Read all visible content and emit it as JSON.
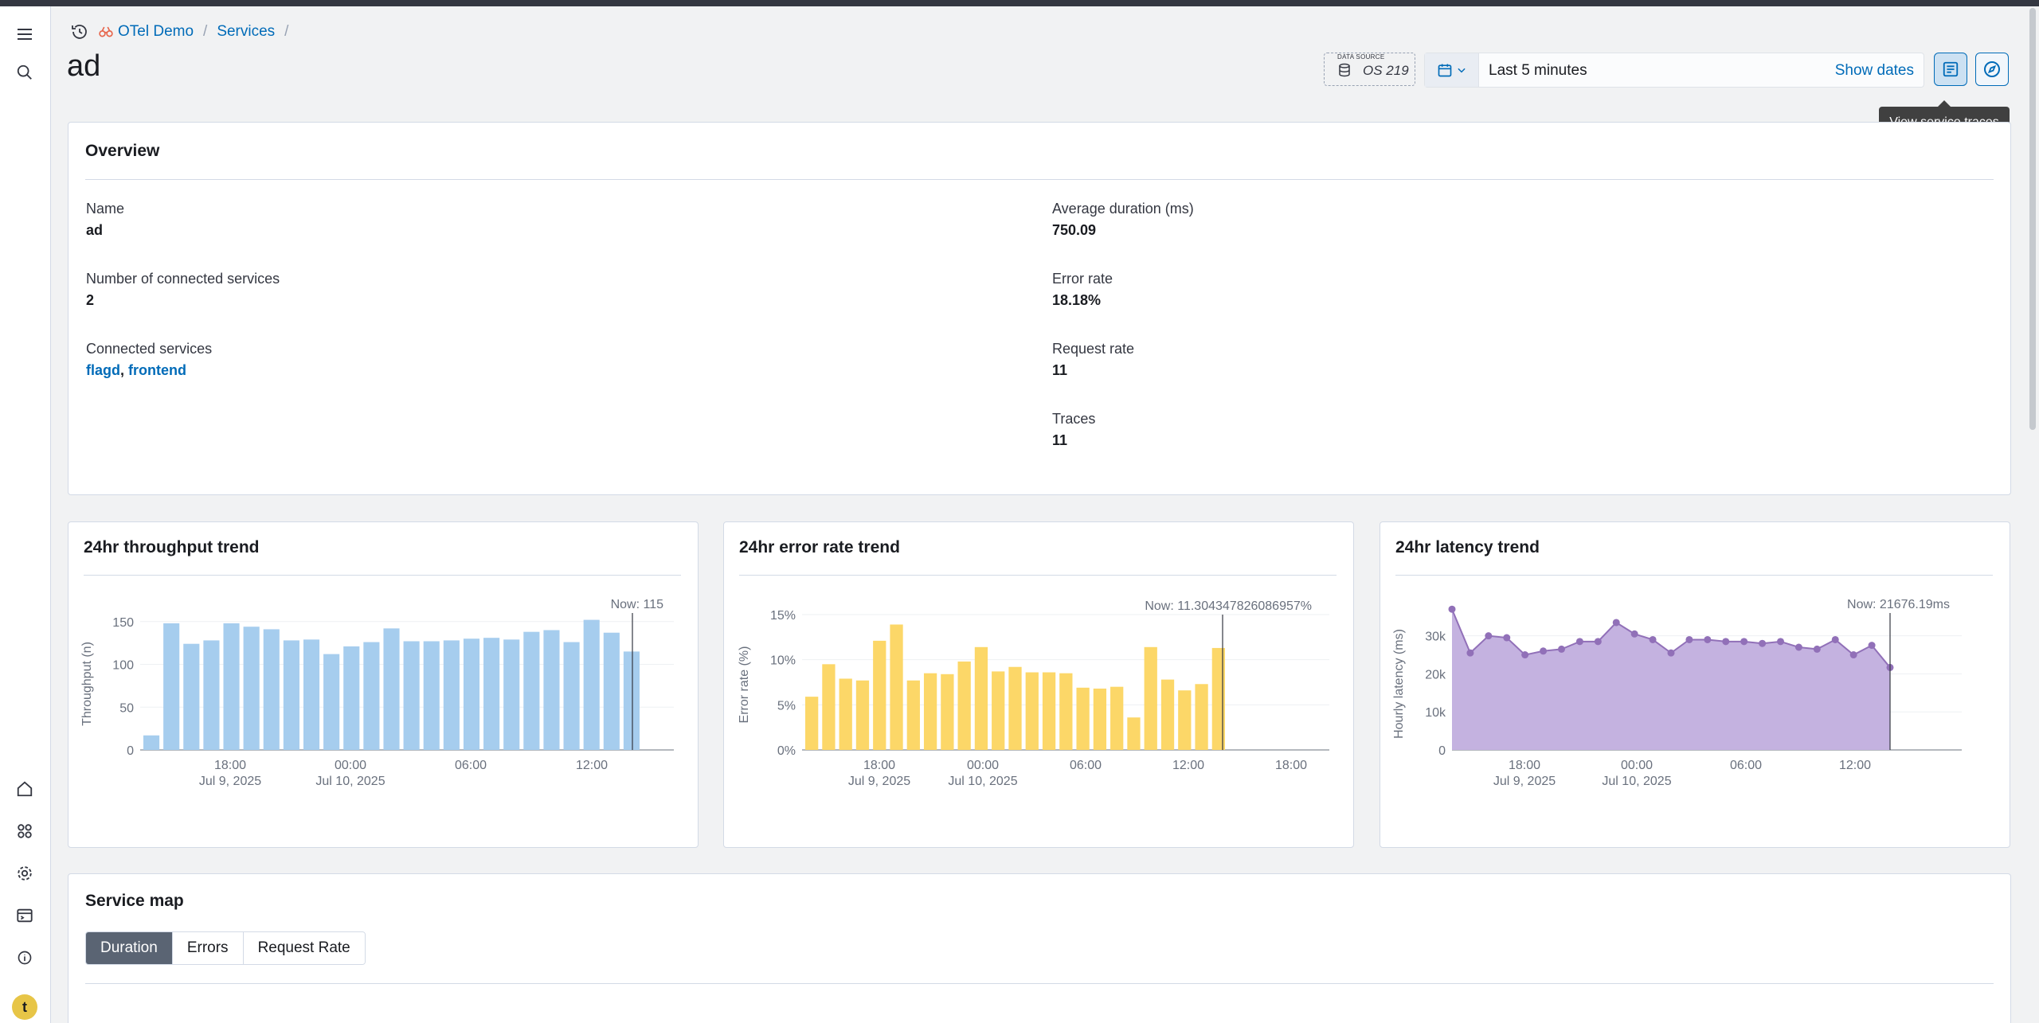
{
  "breadcrumbs": [
    "OTel Demo",
    "Services"
  ],
  "page": {
    "title": "ad"
  },
  "datasource": {
    "caption": "DATA SOURCE",
    "name": "OS 219"
  },
  "time": {
    "range": "Last 5 minutes",
    "show_dates": "Show dates"
  },
  "tooltip": "View service traces",
  "overview": {
    "title": "Overview",
    "left": [
      {
        "label": "Name",
        "value": "ad"
      },
      {
        "label": "Number of connected services",
        "value": "2"
      },
      {
        "label": "Connected services",
        "links": [
          "flagd",
          "frontend"
        ],
        "separator": ", "
      }
    ],
    "right": [
      {
        "label": "Average duration (ms)",
        "value": "750.09"
      },
      {
        "label": "Error rate",
        "value": "18.18%"
      },
      {
        "label": "Request rate",
        "value": "11"
      },
      {
        "label": "Traces",
        "value": "11"
      }
    ]
  },
  "throughput_title": "24hr throughput trend",
  "error_title": "24hr error rate trend",
  "latency_title": "24hr latency trend",
  "service_map": {
    "title": "Service map",
    "tabs": [
      "Duration",
      "Errors",
      "Request Rate"
    ],
    "active": "Duration"
  },
  "colors": {
    "throughput": "#a6cdee",
    "error": "#fcd768",
    "latency": "#c4b2e0",
    "latency_line": "#9170b8"
  },
  "chart_data": [
    {
      "type": "bar",
      "title": "24hr throughput trend",
      "ylabel": "Throughput (n)",
      "ylim": [
        0,
        160
      ],
      "yticks": [
        0,
        50,
        100,
        150
      ],
      "xticks": [
        "18:00",
        "00:00",
        "06:00",
        "12:00"
      ],
      "xticks_sub": [
        "Jul 9, 2025",
        "Jul 10, 2025",
        "",
        ""
      ],
      "now_label": "Now: 115",
      "values": [
        17,
        148,
        124,
        128,
        148,
        144,
        141,
        128,
        129,
        112,
        121,
        126,
        142,
        127,
        127,
        128,
        130,
        131,
        129,
        138,
        140,
        126,
        152,
        137,
        115
      ]
    },
    {
      "type": "bar",
      "title": "24hr error rate trend",
      "ylabel": "Error rate (%)",
      "ylim": [
        0,
        15
      ],
      "yticks": [
        "0%",
        "5%",
        "10%",
        "15%"
      ],
      "xticks": [
        "18:00",
        "00:00",
        "06:00",
        "12:00",
        "18:00"
      ],
      "xticks_sub": [
        "Jul 9, 2025",
        "Jul 10, 2025",
        "",
        "",
        ""
      ],
      "now_label": "Now: 11.304347826086957%",
      "values": [
        5.9,
        9.5,
        7.9,
        7.7,
        12.1,
        13.9,
        7.7,
        8.5,
        8.4,
        9.8,
        11.4,
        8.7,
        9.2,
        8.6,
        8.6,
        8.5,
        6.9,
        6.8,
        7.0,
        3.6,
        11.4,
        7.8,
        6.6,
        7.3,
        11.3
      ]
    },
    {
      "type": "area",
      "title": "24hr latency trend",
      "ylabel": "Hourly latency (ms)",
      "ylim": [
        0,
        36000
      ],
      "yticks": [
        "0",
        "10k",
        "20k",
        "30k"
      ],
      "xticks": [
        "18:00",
        "00:00",
        "06:00",
        "12:00"
      ],
      "xticks_sub": [
        "Jul 9, 2025",
        "Jul 10, 2025",
        "",
        ""
      ],
      "now_label": "Now: 21676.19ms",
      "values": [
        37000,
        25500,
        30000,
        29500,
        25000,
        26000,
        26500,
        28500,
        28500,
        33500,
        30500,
        29000,
        25500,
        29000,
        29000,
        28500,
        28500,
        28000,
        28500,
        27000,
        26500,
        29000,
        25000,
        27500,
        21676
      ]
    }
  ]
}
